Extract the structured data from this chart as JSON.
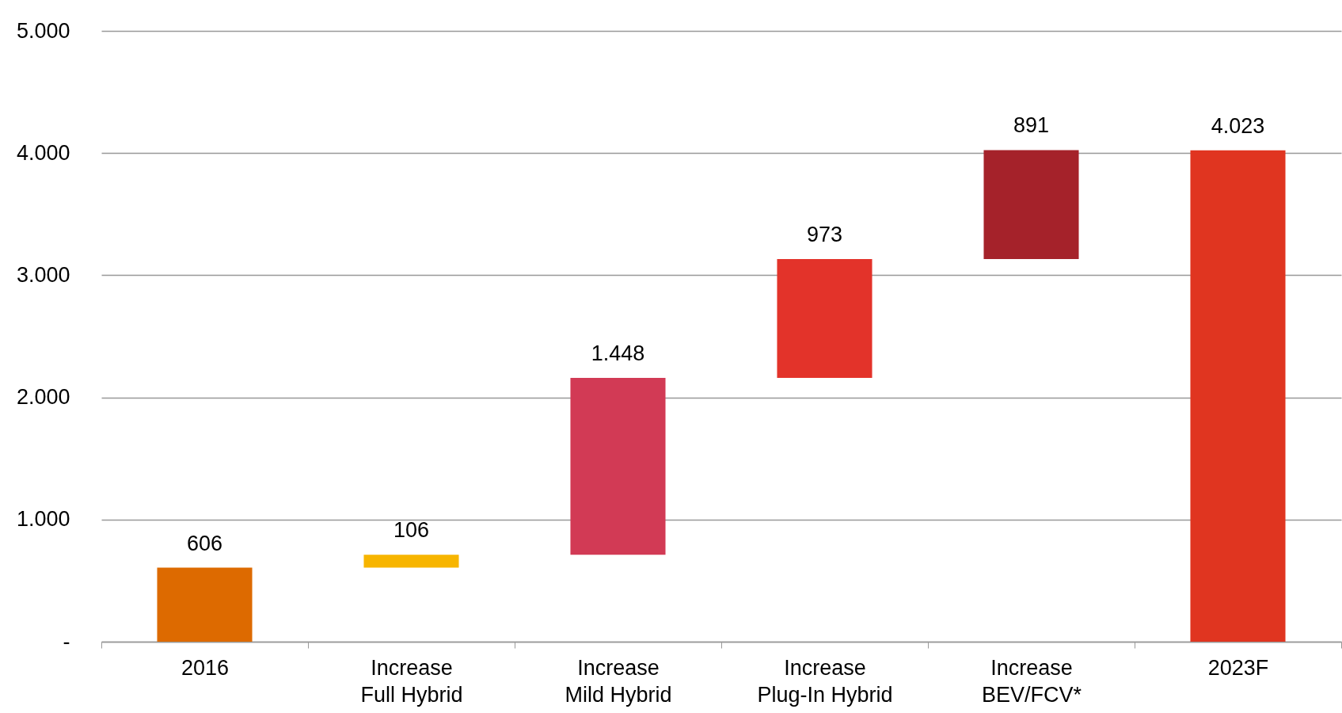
{
  "chart_data": {
    "type": "bar",
    "categories": [
      "2016",
      "Increase Full Hybrid",
      "Increase Mild Hybrid",
      "Increase Plug-In Hybrid",
      "Increase BEV/FCV*",
      "2023F"
    ],
    "values": [
      606,
      106,
      1448,
      973,
      891,
      4023
    ],
    "base": [
      0,
      606,
      712,
      2160,
      3133,
      0
    ],
    "colors": [
      "#dd6a00",
      "#f7b500",
      "#d23a55",
      "#e3332a",
      "#a5222a",
      "#e03520"
    ],
    "value_labels": [
      "606",
      "106",
      "1.448",
      "973",
      "891",
      "4.023"
    ],
    "ylim": [
      0,
      5000
    ],
    "yticks": [
      {
        "value": 0,
        "label": "-"
      },
      {
        "value": 1000,
        "label": "1.000"
      },
      {
        "value": 2000,
        "label": "2.000"
      },
      {
        "value": 3000,
        "label": "3.000"
      },
      {
        "value": 4000,
        "label": "4.000"
      },
      {
        "value": 5000,
        "label": "5.000"
      }
    ],
    "grid": "y",
    "legend": false
  }
}
